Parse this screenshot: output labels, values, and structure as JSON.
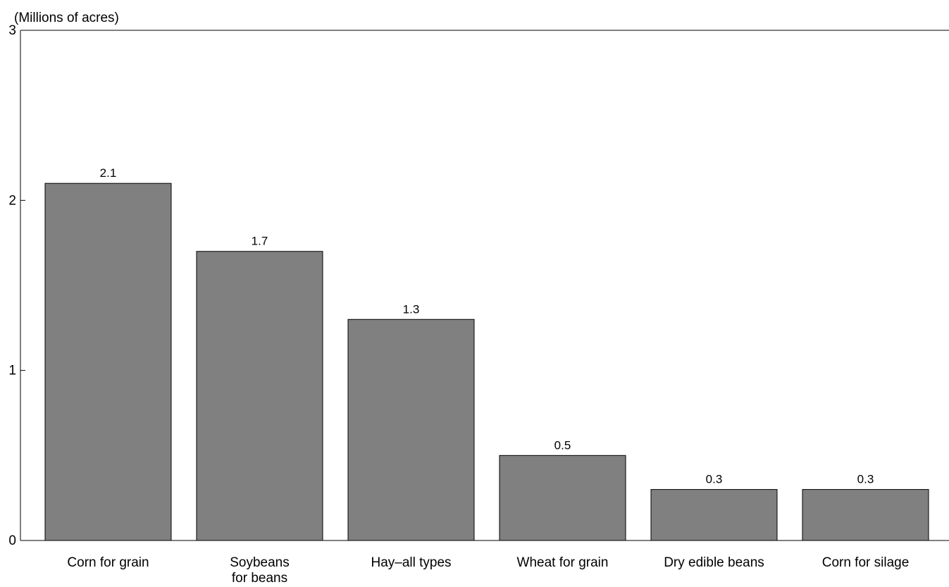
{
  "chart_data": {
    "type": "bar",
    "ylabel": "(Millions of acres)",
    "ylim": [
      0,
      3
    ],
    "yticks": [
      0,
      1,
      2,
      3
    ],
    "grid": false,
    "bar_color": "#808080",
    "categories": [
      [
        "Corn for grain"
      ],
      [
        "Soybeans",
        "for beans"
      ],
      [
        "Hay–all types"
      ],
      [
        "Wheat for grain"
      ],
      [
        "Dry edible beans"
      ],
      [
        "Corn for silage"
      ]
    ],
    "values": [
      2.1,
      1.7,
      1.3,
      0.5,
      0.3,
      0.3
    ],
    "value_labels": [
      "2.1",
      "1.7",
      "1.3",
      "0.5",
      "0.3",
      "0.3"
    ]
  }
}
